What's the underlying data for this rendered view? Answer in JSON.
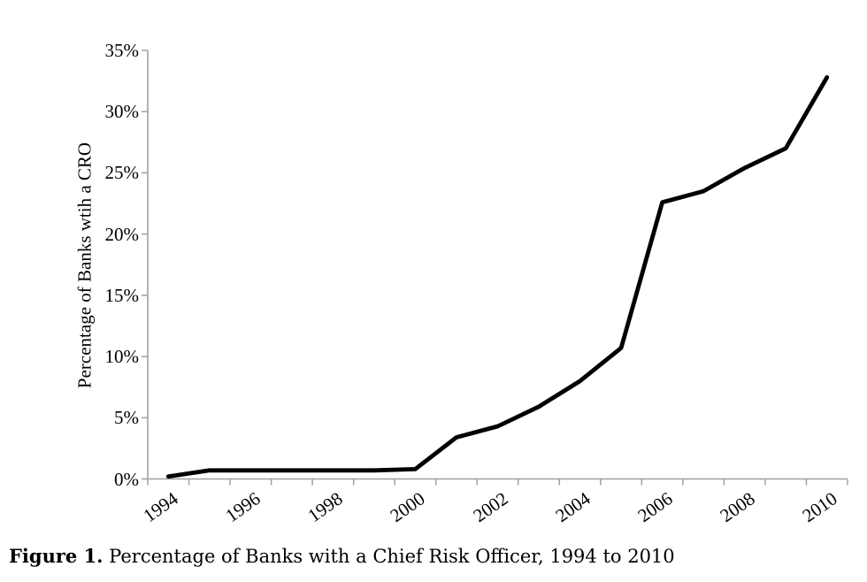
{
  "chart_data": {
    "type": "line",
    "x": [
      1994,
      1995,
      1996,
      1997,
      1998,
      1999,
      2000,
      2001,
      2002,
      2003,
      2004,
      2005,
      2006,
      2007,
      2008,
      2009,
      2010
    ],
    "values": [
      0.2,
      0.7,
      0.7,
      0.7,
      0.7,
      0.7,
      0.8,
      3.4,
      4.3,
      5.9,
      8.0,
      10.7,
      22.6,
      23.5,
      25.4,
      27.0,
      32.8
    ],
    "ylabel": "Percentage of Banks wtih a CRO",
    "xlabel": "",
    "ylim": [
      0,
      35
    ],
    "ytick_step": 5,
    "ytick_labels": [
      "0%",
      "5%",
      "10%",
      "15%",
      "20%",
      "25%",
      "30%",
      "35%"
    ],
    "xtick_labels": [
      "1994",
      "1996",
      "1998",
      "2000",
      "2002",
      "2004",
      "2006",
      "2008",
      "2010"
    ],
    "x_minor_ticks_every_year": true,
    "grid": false,
    "legend": false,
    "line_color": "#000000",
    "line_width": 4.8,
    "axis_color": "#a0a0a0"
  },
  "caption": {
    "label": "Figure 1.",
    "text": " Percentage of Banks with a Chief Risk Officer, 1994 to 2010"
  }
}
